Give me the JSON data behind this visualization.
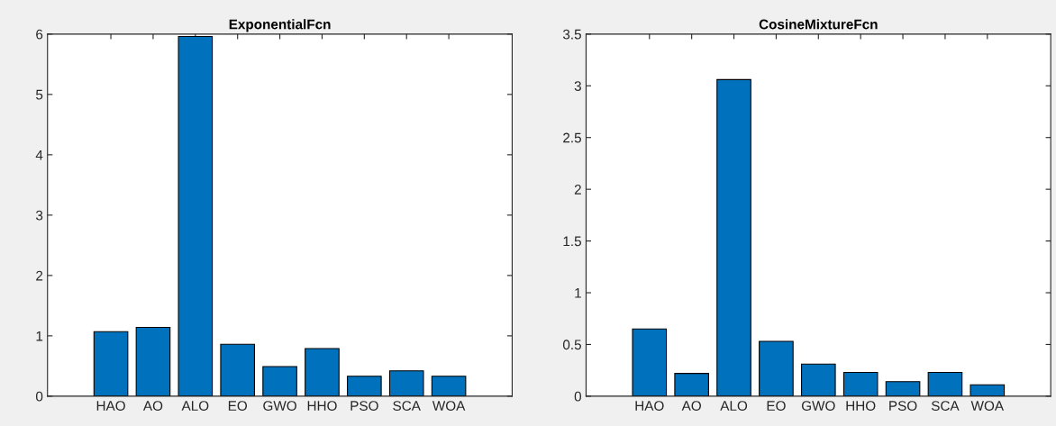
{
  "chart_data": [
    {
      "type": "bar",
      "title": "ExponentialFcn",
      "categories": [
        "HAO",
        "AO",
        "ALO",
        "EO",
        "GWO",
        "HHO",
        "PSO",
        "SCA",
        "WOA"
      ],
      "values": [
        1.07,
        1.14,
        5.96,
        0.86,
        0.49,
        0.79,
        0.33,
        0.42,
        0.33
      ],
      "color": "#0072bd",
      "ylim": [
        0,
        6
      ],
      "yticks": [
        0,
        1,
        2,
        3,
        4,
        5,
        6
      ],
      "grid": false
    },
    {
      "type": "bar",
      "title": "CosineMixtureFcn",
      "categories": [
        "HAO",
        "AO",
        "ALO",
        "EO",
        "GWO",
        "HHO",
        "PSO",
        "SCA",
        "WOA"
      ],
      "values": [
        0.65,
        0.22,
        3.06,
        0.53,
        0.31,
        0.23,
        0.14,
        0.23,
        0.11
      ],
      "color": "#0072bd",
      "ylim": [
        0,
        3.5
      ],
      "yticks": [
        0,
        0.5,
        1,
        1.5,
        2,
        2.5,
        3,
        3.5
      ],
      "grid": false
    }
  ]
}
